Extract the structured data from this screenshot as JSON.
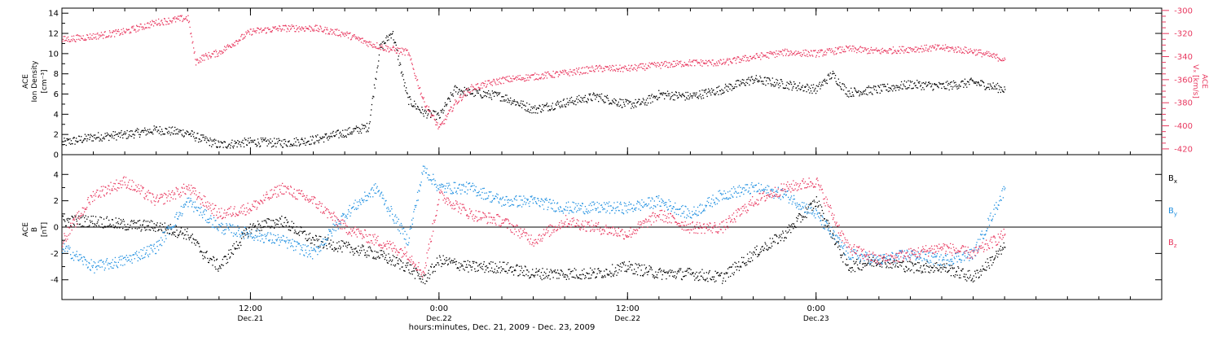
{
  "chart_data": [
    {
      "type": "scatter",
      "panel": "top",
      "ylabel_lines": [
        "ACE",
        "Ion Density",
        "[cm⁻³]"
      ],
      "ylim": [
        0,
        14.5
      ],
      "yticks": [
        0,
        2,
        4,
        6,
        8,
        10,
        12,
        14
      ],
      "y2label_lines": [
        "ACE",
        "Vₓ [km/s]"
      ],
      "y2lim": [
        -425,
        -298
      ],
      "y2ticks": [
        -420,
        -400,
        -380,
        -360,
        -340,
        -320,
        -300
      ],
      "grid": false,
      "series": [
        {
          "axis": "left",
          "color": "#000000",
          "x": [
            0,
            2,
            4,
            6,
            8,
            8.5,
            10,
            12,
            14,
            16,
            18,
            19.5,
            20.2,
            21,
            22,
            23,
            24,
            25,
            26,
            28,
            30,
            32,
            34,
            36,
            37,
            38,
            40,
            42,
            44,
            46,
            48,
            49,
            50,
            52,
            54,
            56,
            58,
            60
          ],
          "y": [
            1.2,
            1.8,
            2.0,
            2.5,
            2.2,
            1.8,
            1.0,
            1.3,
            1.2,
            1.5,
            2.2,
            2.8,
            10.5,
            12.2,
            5.5,
            4.2,
            3.8,
            6.5,
            6.2,
            5.8,
            4.5,
            5.2,
            5.8,
            5.0,
            5.2,
            6.0,
            5.8,
            6.5,
            7.5,
            7.0,
            6.5,
            8.0,
            6.2,
            6.5,
            7.0,
            6.8,
            7.2,
            6.5
          ]
        },
        {
          "axis": "right",
          "color": "#e8385f",
          "x": [
            0,
            2,
            4,
            6,
            8,
            8.5,
            9,
            10,
            12,
            14,
            16,
            18,
            19.5,
            20.5,
            22,
            23,
            24,
            25,
            26,
            28,
            30,
            32,
            34,
            36,
            38,
            40,
            42,
            44,
            46,
            48,
            50,
            52,
            54,
            56,
            58,
            60
          ],
          "y": [
            -325,
            -322,
            -318,
            -310,
            -306,
            -344,
            -340,
            -336,
            -318,
            -315,
            -315,
            -320,
            -328,
            -332,
            -336,
            -378,
            -402,
            -380,
            -367,
            -360,
            -357,
            -354,
            -350,
            -350,
            -347,
            -345,
            -345,
            -340,
            -336,
            -337,
            -333,
            -335,
            -333,
            -332,
            -335,
            -342
          ]
        }
      ]
    },
    {
      "type": "scatter",
      "panel": "bottom",
      "ylabel_lines": [
        "ACE",
        "B",
        "[nT]"
      ],
      "ylim": [
        -5.5,
        5.5
      ],
      "yticks": [
        -4,
        -2,
        0,
        2,
        4
      ],
      "zero_line": true,
      "grid": false,
      "legend_placement": "right",
      "series": [
        {
          "name": "Bₓ",
          "color": "#000000",
          "x": [
            0,
            2,
            4,
            6,
            8,
            9,
            10,
            12,
            14,
            16,
            18,
            20,
            22,
            23,
            24,
            26,
            28,
            30,
            32,
            34,
            36,
            38,
            40,
            42,
            44,
            46,
            48,
            50,
            52,
            54,
            56,
            58,
            60
          ],
          "y": [
            0.5,
            0.5,
            0.2,
            0.1,
            -0.5,
            -2.0,
            -3.0,
            0.0,
            0.5,
            -1.0,
            -1.5,
            -2.0,
            -3.0,
            -4.0,
            -2.5,
            -3.0,
            -3.0,
            -3.5,
            -3.5,
            -3.5,
            -3.0,
            -3.5,
            -3.5,
            -3.8,
            -2.0,
            -0.5,
            2.0,
            -3.0,
            -2.5,
            -3.0,
            -3.0,
            -3.8,
            -1.5
          ]
        },
        {
          "name": "Bᵧ",
          "color": "#1f8fe0",
          "x": [
            0,
            2,
            4,
            6,
            8,
            9,
            10,
            12,
            14,
            16,
            18,
            20,
            22,
            23,
            24,
            26,
            28,
            30,
            32,
            34,
            36,
            38,
            40,
            42,
            44,
            46,
            48,
            50,
            52,
            54,
            56,
            58,
            60
          ],
          "y": [
            -1.5,
            -3.0,
            -2.5,
            -1.5,
            2.0,
            1.0,
            0.0,
            -0.5,
            -1.0,
            -2.0,
            1.0,
            3.0,
            -1.0,
            4.5,
            3.0,
            3.0,
            2.0,
            2.0,
            1.5,
            1.5,
            1.5,
            2.0,
            1.0,
            2.5,
            3.0,
            2.5,
            1.0,
            -2.0,
            -2.5,
            -2.0,
            -2.5,
            -2.0,
            3.0
          ]
        },
        {
          "name": "B_z",
          "color": "#e8385f",
          "x": [
            0,
            2,
            4,
            6,
            8,
            9,
            10,
            12,
            14,
            16,
            18,
            20,
            22,
            23,
            24,
            26,
            28,
            30,
            32,
            34,
            36,
            38,
            40,
            42,
            44,
            46,
            48,
            50,
            52,
            54,
            56,
            58,
            60
          ],
          "y": [
            -1.0,
            2.5,
            3.5,
            2.0,
            3.0,
            2.0,
            1.0,
            1.5,
            3.0,
            2.0,
            0.0,
            -1.0,
            -2.0,
            -3.5,
            2.5,
            1.0,
            0.5,
            -1.0,
            0.5,
            0.0,
            -0.5,
            1.0,
            0.0,
            0.0,
            2.0,
            3.0,
            3.5,
            -1.5,
            -2.5,
            -2.0,
            -1.5,
            -2.0,
            -0.5
          ]
        }
      ]
    }
  ],
  "x_axis": {
    "xlim": [
      0,
      70
    ],
    "xlabel": "hours:minutes, Dec. 21, 2009 - Dec. 23, 2009",
    "major_ticks": [
      {
        "x": 12,
        "time": "12:00",
        "date": "Dec.21"
      },
      {
        "x": 24,
        "time": "0:00",
        "date": "Dec.22"
      },
      {
        "x": 36,
        "time": "12:00",
        "date": "Dec.22"
      },
      {
        "x": 48,
        "time": "0:00",
        "date": "Dec.23"
      }
    ]
  },
  "legend": [
    {
      "label": "B",
      "sub": "x",
      "color": "#000000"
    },
    {
      "label": "B",
      "sub": "y",
      "color": "#1f8fe0"
    },
    {
      "label": "B",
      "sub": "z",
      "color": "#e8385f"
    }
  ]
}
